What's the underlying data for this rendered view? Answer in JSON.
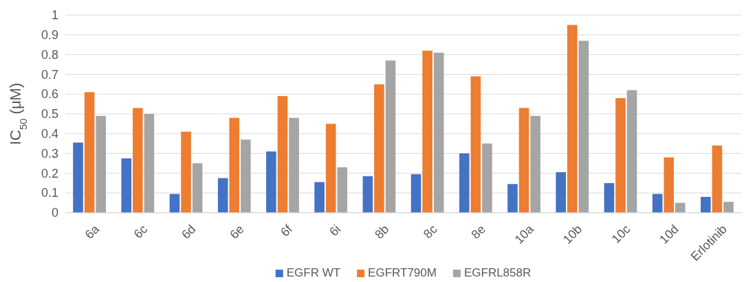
{
  "chart_data": {
    "type": "bar",
    "ylabel": "IC$_{50}$ (μM)",
    "categories": [
      "6a",
      "6c",
      "6d",
      "6e",
      "6f",
      "6i",
      "8b",
      "8c",
      "8e",
      "10a",
      "10b",
      "10c",
      "10d",
      "Erlotinib"
    ],
    "series": [
      {
        "name": "EGFR WT",
        "color": "#4472c4",
        "values": [
          0.355,
          0.275,
          0.095,
          0.175,
          0.31,
          0.155,
          0.185,
          0.195,
          0.3,
          0.145,
          0.205,
          0.15,
          0.095,
          0.08
        ]
      },
      {
        "name": "EGFRT790M",
        "color": "#ed7d31",
        "values": [
          0.61,
          0.53,
          0.41,
          0.48,
          0.59,
          0.45,
          0.65,
          0.82,
          0.69,
          0.53,
          0.95,
          0.58,
          0.28,
          0.34
        ]
      },
      {
        "name": "EGFRL858R",
        "color": "#a5a5a5",
        "values": [
          0.49,
          0.5,
          0.25,
          0.37,
          0.48,
          0.23,
          0.77,
          0.81,
          0.35,
          0.49,
          0.87,
          0.62,
          0.05,
          0.055
        ]
      }
    ],
    "ylim": [
      0,
      1
    ],
    "yticks": [
      0,
      0.1,
      0.2,
      0.3,
      0.4,
      0.5,
      0.6,
      0.7,
      0.8,
      0.9,
      1
    ],
    "grid": "y",
    "legend": "bottom"
  }
}
